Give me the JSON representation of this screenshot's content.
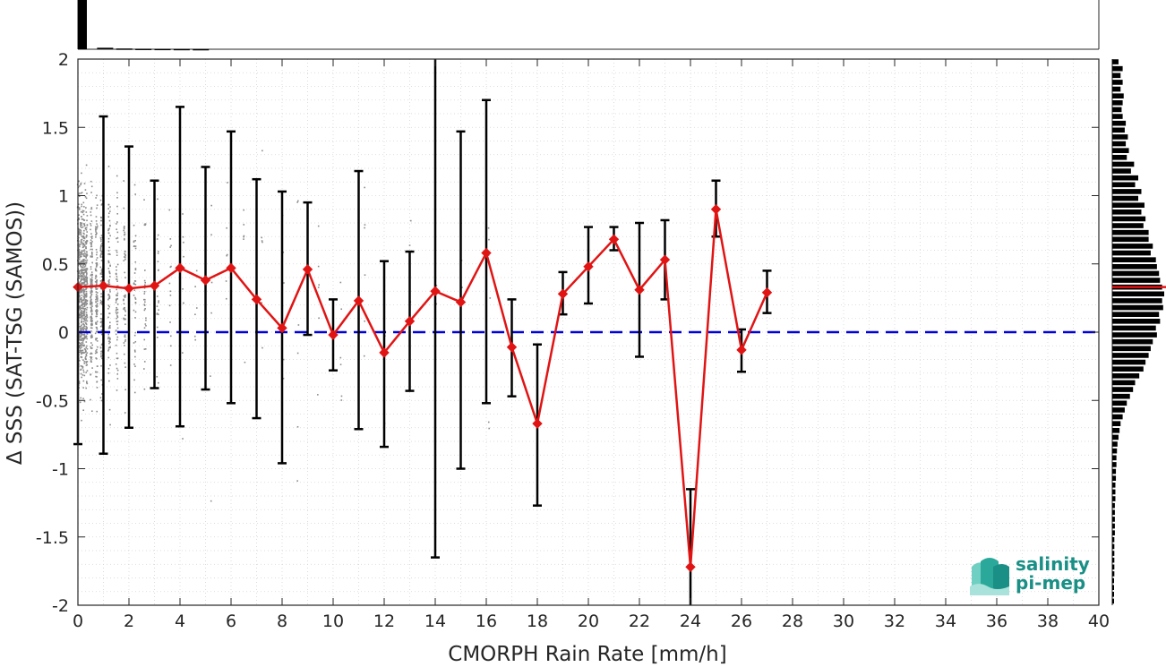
{
  "chart_data": {
    "type": "scatter",
    "xlabel": "CMORPH Rain Rate [mm/h]",
    "ylabel": "Δ SSS (SAT-TSG (SAMOS))",
    "xlim": [
      0,
      40
    ],
    "ylim": [
      -2,
      2
    ],
    "x_ticks": [
      "0",
      "2",
      "4",
      "6",
      "8",
      "10",
      "12",
      "14",
      "16",
      "18",
      "20",
      "22",
      "24",
      "26",
      "28",
      "30",
      "32",
      "34",
      "36",
      "38",
      "40"
    ],
    "y_ticks": [
      "2",
      "1.5",
      "1",
      "0.5",
      "0",
      "-0.5",
      "-1",
      "-1.5",
      "-2"
    ],
    "grid": true,
    "reference_line": {
      "y": 0,
      "color": "#0000dd",
      "style": "dashed"
    },
    "series": [
      {
        "kind": "binned-mean",
        "color": "#e11414",
        "x": [
          0,
          1,
          2,
          3,
          4,
          5,
          6,
          7,
          8,
          9,
          10,
          11,
          12,
          13,
          14,
          15,
          16,
          17,
          18,
          19,
          20,
          21,
          22,
          23,
          24,
          25,
          26,
          27
        ],
        "y": [
          0.33,
          0.34,
          0.32,
          0.34,
          0.47,
          0.38,
          0.47,
          0.24,
          0.03,
          0.46,
          -0.02,
          0.23,
          -0.15,
          0.08,
          0.3,
          0.22,
          0.58,
          -0.11,
          -0.67,
          0.28,
          0.48,
          0.68,
          0.31,
          0.53,
          -1.72,
          0.9,
          -0.13,
          0.29
        ],
        "err_low": [
          -0.82,
          -0.89,
          -0.7,
          -0.41,
          -0.69,
          -0.42,
          -0.52,
          -0.63,
          -0.96,
          -0.02,
          -0.28,
          -0.71,
          -0.84,
          -0.43,
          -1.65,
          -1.0,
          -0.52,
          -0.47,
          -1.27,
          0.13,
          0.21,
          0.6,
          -0.18,
          0.24,
          -2.0,
          0.7,
          -0.29,
          0.14
        ],
        "err_high": [
          0.33,
          1.58,
          1.36,
          1.11,
          1.65,
          1.21,
          1.47,
          1.12,
          1.03,
          0.95,
          0.24,
          1.18,
          0.52,
          0.59,
          2.0,
          1.47,
          1.7,
          0.24,
          -0.09,
          0.44,
          0.77,
          0.77,
          0.8,
          0.82,
          -1.15,
          1.11,
          0.02,
          0.45
        ]
      }
    ],
    "top_histogram": {
      "counts": [
        1.0,
        0.03,
        0.015,
        0.01,
        0.008,
        0.006,
        0.004
      ]
    },
    "right_histogram": {
      "y": [
        1.98,
        1.93,
        1.88,
        1.83,
        1.78,
        1.73,
        1.68,
        1.63,
        1.58,
        1.53,
        1.48,
        1.43,
        1.38,
        1.33,
        1.28,
        1.23,
        1.18,
        1.13,
        1.08,
        1.03,
        0.98,
        0.93,
        0.88,
        0.83,
        0.78,
        0.73,
        0.68,
        0.63,
        0.58,
        0.53,
        0.48,
        0.43,
        0.38,
        0.33,
        0.28,
        0.23,
        0.18,
        0.13,
        0.08,
        0.03,
        -0.02,
        -0.07,
        -0.12,
        -0.17,
        -0.22,
        -0.27,
        -0.32,
        -0.37,
        -0.42,
        -0.47,
        -0.52,
        -0.57,
        -0.62,
        -0.67,
        -0.72,
        -0.77,
        -0.82,
        -0.87,
        -0.92,
        -0.97,
        -1.02,
        -1.07,
        -1.12,
        -1.17,
        -1.22,
        -1.27,
        -1.32,
        -1.37,
        -1.42,
        -1.47,
        -1.52,
        -1.57,
        -1.62,
        -1.67,
        -1.72,
        -1.77,
        -1.82,
        -1.87,
        -1.92,
        -1.97
      ],
      "counts": [
        0.12,
        0.2,
        0.16,
        0.2,
        0.16,
        0.22,
        0.2,
        0.18,
        0.2,
        0.26,
        0.24,
        0.3,
        0.26,
        0.32,
        0.28,
        0.42,
        0.36,
        0.5,
        0.44,
        0.56,
        0.5,
        0.62,
        0.56,
        0.64,
        0.6,
        0.7,
        0.7,
        0.78,
        0.74,
        0.84,
        0.86,
        0.9,
        0.92,
        0.96,
        1.0,
        0.96,
        0.98,
        0.9,
        0.92,
        0.84,
        0.86,
        0.78,
        0.74,
        0.7,
        0.64,
        0.6,
        0.52,
        0.44,
        0.4,
        0.34,
        0.28,
        0.24,
        0.2,
        0.16,
        0.14,
        0.12,
        0.1,
        0.09,
        0.08,
        0.08,
        0.07,
        0.07,
        0.06,
        0.06,
        0.06,
        0.05,
        0.05,
        0.05,
        0.05,
        0.05,
        0.04,
        0.04,
        0.04,
        0.04,
        0.04,
        0.04,
        0.03,
        0.03,
        0.03,
        0.03
      ],
      "mean": 0.33,
      "mean_color": "#e11414"
    }
  },
  "logo": {
    "line1": "salinity",
    "line2": "pi-mep"
  }
}
